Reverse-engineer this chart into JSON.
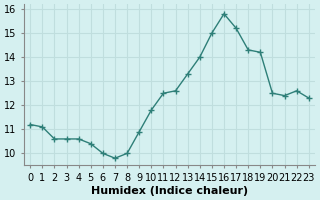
{
  "x": [
    0,
    1,
    2,
    3,
    4,
    5,
    6,
    7,
    8,
    9,
    10,
    11,
    12,
    13,
    14,
    15,
    16,
    17,
    18,
    19,
    20,
    21,
    22,
    23
  ],
  "y": [
    11.2,
    11.1,
    10.6,
    10.6,
    10.6,
    10.4,
    10.0,
    9.8,
    10.0,
    10.9,
    11.8,
    12.5,
    12.6,
    13.3,
    14.0,
    15.0,
    15.8,
    15.2,
    14.3,
    14.2,
    12.5,
    12.4,
    12.6,
    12.3
  ],
  "xlabel": "Humidex (Indice chaleur)",
  "ylim": [
    9.5,
    16.2
  ],
  "xlim": [
    -0.5,
    23.5
  ],
  "bg_color": "#d5f0f0",
  "line_color": "#2e7f78",
  "grid_color": "#c0dede",
  "tick_label_fontsize": 7,
  "xlabel_fontsize": 8
}
